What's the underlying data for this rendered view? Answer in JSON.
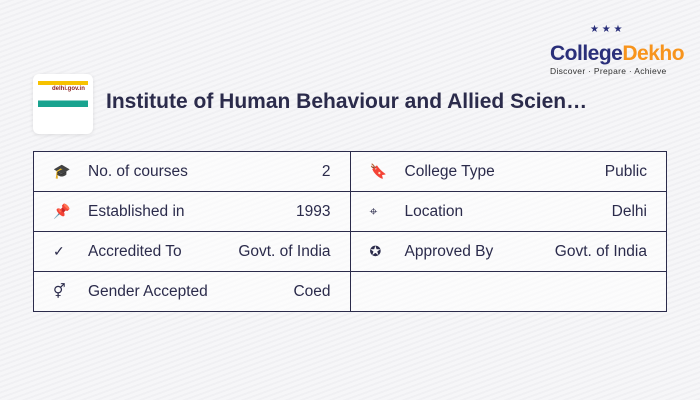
{
  "brand": {
    "part1": "College",
    "part2": "Dekho",
    "tagline": "Discover · Prepare · Achieve"
  },
  "institute": {
    "logo_text": "delhi.gov.in",
    "name": "Institute of Human Behaviour and Allied Scien…"
  },
  "rows": [
    [
      {
        "icon": "graduation-cap-icon",
        "glyph": "🎓",
        "label": "No. of courses",
        "value": "2"
      },
      {
        "icon": "bookmark-icon",
        "glyph": "🔖",
        "label": "College Type",
        "value": "Public"
      }
    ],
    [
      {
        "icon": "pin-icon",
        "glyph": "📌",
        "label": "Established in",
        "value": "1993"
      },
      {
        "icon": "location-icon",
        "glyph": "⌖",
        "label": "Location",
        "value": "Delhi"
      }
    ],
    [
      {
        "icon": "check-circle-icon",
        "glyph": "✓",
        "label": "Accredited To",
        "value": "Govt. of India"
      },
      {
        "icon": "badge-icon",
        "glyph": "✪",
        "label": "Approved By",
        "value": "Govt. of India"
      }
    ],
    [
      {
        "icon": "gender-icon",
        "glyph": "⚥",
        "label": "Gender Accepted",
        "value": "Coed"
      },
      null
    ]
  ]
}
